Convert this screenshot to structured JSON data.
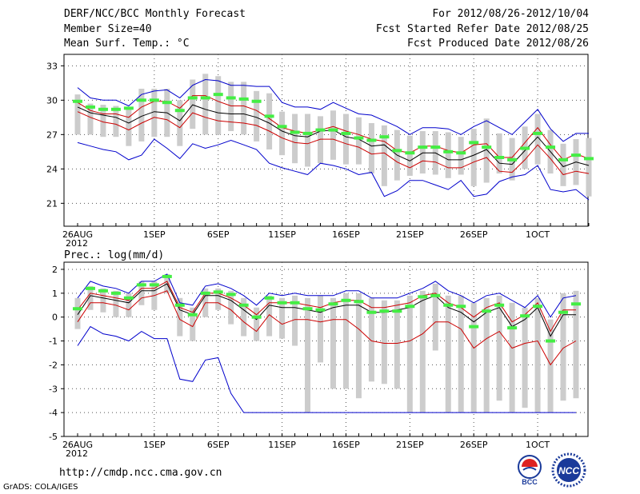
{
  "header": {
    "title": "DERF/NCC/BCC Monthly Forecast",
    "member": "Member Size=40",
    "variable": "Mean Surf. Temp.: °C",
    "period": "For 2012/08/26-2012/10/04",
    "started": "Fcst Started Refer Date 2012/08/25",
    "produced": "Fcst Produced Date 2012/08/26"
  },
  "url": "http://cmdp.ncc.cma.gov.cn",
  "credit": "GrADS: COLA/IGES",
  "logos": {
    "bcc": "BCC",
    "ncc": "NCC"
  },
  "colors": {
    "max": "#0000cc",
    "min": "#0000cc",
    "mean": "#000000",
    "band": "#cc0000",
    "obs": "#44ee44",
    "spread": "#cccccc"
  },
  "chart_data": [
    {
      "type": "line",
      "title": "Mean Surf. Temp.: °C",
      "xlabel_year": "2012",
      "ylim": [
        19,
        34
      ],
      "yticks": [
        21,
        24,
        27,
        30,
        33
      ],
      "ytick_labels": [
        "21",
        "24",
        "27",
        "30",
        "33"
      ],
      "xtick_labels": [
        {
          "day": 0,
          "label": "26AUG"
        },
        {
          "day": 6,
          "label": "1SEP"
        },
        {
          "day": 11,
          "label": "6SEP"
        },
        {
          "day": 16,
          "label": "11SEP"
        },
        {
          "day": 21,
          "label": "16SEP"
        },
        {
          "day": 26,
          "label": "21SEP"
        },
        {
          "day": 31,
          "label": "26SEP"
        },
        {
          "day": 36,
          "label": "1OCT"
        }
      ],
      "series": [
        {
          "name": "max",
          "values": [
            31.1,
            30.2,
            30.0,
            30.0,
            29.5,
            30.5,
            30.8,
            30.9,
            30.2,
            31.3,
            31.8,
            31.7,
            31.3,
            31.3,
            31.2,
            31.2,
            29.8,
            29.4,
            29.4,
            29.2,
            29.8,
            29.3,
            28.8,
            28.7,
            28.2,
            27.7,
            27.0,
            27.6,
            27.6,
            27.5,
            27.0,
            27.7,
            28.2,
            27.6,
            27.0,
            28.1,
            29.2,
            27.5,
            26.4,
            27.1,
            27.1
          ]
        },
        {
          "name": "upper",
          "values": [
            29.8,
            29.1,
            28.8,
            28.8,
            28.5,
            29.4,
            29.9,
            29.9,
            29.3,
            30.4,
            30.4,
            29.9,
            29.5,
            29.5,
            29.1,
            28.4,
            27.6,
            27.3,
            27.1,
            27.4,
            27.7,
            27.3,
            27.0,
            26.6,
            26.4,
            25.6,
            25.4,
            26.0,
            26.0,
            25.6,
            25.4,
            26.1,
            26.2,
            25.0,
            25.0,
            26.3,
            27.6,
            26.1,
            24.8,
            25.3,
            24.9
          ]
        },
        {
          "name": "mean",
          "values": [
            29.4,
            28.9,
            28.7,
            28.5,
            28.0,
            28.6,
            29.0,
            28.9,
            28.2,
            29.6,
            29.2,
            28.9,
            28.8,
            28.8,
            28.5,
            28.0,
            27.3,
            26.9,
            26.8,
            27.3,
            27.4,
            26.8,
            26.6,
            26.0,
            26.1,
            25.2,
            24.7,
            25.4,
            25.4,
            24.8,
            24.8,
            25.2,
            25.7,
            24.5,
            24.4,
            25.6,
            26.8,
            25.5,
            24.2,
            24.6,
            24.3
          ]
        },
        {
          "name": "lower",
          "values": [
            29.0,
            28.5,
            28.1,
            27.9,
            27.4,
            28.0,
            28.5,
            28.3,
            27.6,
            28.9,
            28.5,
            28.2,
            28.1,
            28.0,
            27.8,
            27.3,
            26.7,
            26.3,
            26.2,
            26.6,
            26.6,
            26.2,
            25.9,
            25.3,
            25.4,
            24.6,
            24.1,
            24.7,
            24.6,
            24.1,
            24.1,
            24.6,
            25.0,
            23.8,
            23.7,
            24.8,
            26.1,
            24.9,
            23.5,
            23.8,
            23.6
          ]
        },
        {
          "name": "min",
          "values": [
            26.3,
            26.0,
            25.7,
            25.5,
            24.8,
            25.2,
            26.6,
            25.8,
            24.9,
            26.2,
            25.8,
            26.1,
            26.5,
            26.1,
            25.7,
            24.5,
            24.1,
            23.8,
            23.5,
            24.5,
            24.3,
            24.0,
            23.5,
            23.7,
            21.6,
            22.1,
            23.0,
            23.0,
            22.6,
            22.2,
            23.0,
            21.6,
            21.8,
            22.9,
            23.3,
            23.5,
            24.3,
            22.2,
            22.0,
            22.2,
            21.3
          ]
        },
        {
          "name": "observed",
          "values": [
            29.9,
            29.4,
            29.2,
            29.2,
            29.3,
            30.0,
            30.0,
            29.8,
            29.1,
            30.2,
            30.2,
            30.5,
            30.2,
            30.1,
            29.9,
            28.6,
            27.7,
            27.2,
            27.1,
            27.4,
            27.4,
            27.1,
            26.7,
            26.5,
            26.8,
            25.6,
            25.4,
            25.9,
            25.9,
            25.5,
            25.4,
            26.3,
            25.9,
            25.0,
            24.8,
            25.8,
            27.1,
            25.9,
            24.8,
            25.2,
            24.9
          ]
        }
      ],
      "spread": {
        "low": [
          27.0,
          27.0,
          26.8,
          26.8,
          26.0,
          26.4,
          26.8,
          26.8,
          26.0,
          27.5,
          27.0,
          27.0,
          27.3,
          27.0,
          26.4,
          25.7,
          25.2,
          24.5,
          24.2,
          24.5,
          24.8,
          24.4,
          24.4,
          23.6,
          22.5,
          23.0,
          23.4,
          23.6,
          23.5,
          23.2,
          23.5,
          22.5,
          22.8,
          23.6,
          23.0,
          24.0,
          24.4,
          23.6,
          22.5,
          22.6,
          21.6
        ],
        "high": [
          30.5,
          29.7,
          29.6,
          29.5,
          29.3,
          31.0,
          31.0,
          31.0,
          30.0,
          31.8,
          32.3,
          32.1,
          31.6,
          31.6,
          30.8,
          30.6,
          29.0,
          28.8,
          28.8,
          28.6,
          29.1,
          28.8,
          28.5,
          28.0,
          27.8,
          27.4,
          26.9,
          27.3,
          27.3,
          27.2,
          26.8,
          27.5,
          28.4,
          27.1,
          26.7,
          27.7,
          28.8,
          27.4,
          26.2,
          26.6,
          26.7
        ]
      }
    },
    {
      "type": "line",
      "title": "Prec.: log(mm/d)",
      "xlabel_year": "2012",
      "ylim": [
        -5,
        2.3
      ],
      "yticks": [
        -5,
        -4,
        -3,
        -2,
        -1,
        0,
        1,
        2
      ],
      "ytick_labels": [
        "-5",
        "-4",
        "-3",
        "-2",
        "-1",
        "0",
        "1",
        "2"
      ],
      "xtick_labels": [
        {
          "day": 0,
          "label": "26AUG"
        },
        {
          "day": 6,
          "label": "1SEP"
        },
        {
          "day": 11,
          "label": "6SEP"
        },
        {
          "day": 16,
          "label": "11SEP"
        },
        {
          "day": 21,
          "label": "16SEP"
        },
        {
          "day": 26,
          "label": "21SEP"
        },
        {
          "day": 31,
          "label": "26SEP"
        },
        {
          "day": 36,
          "label": "1OCT"
        }
      ],
      "series": [
        {
          "name": "max",
          "values": [
            0.8,
            1.5,
            1.3,
            1.2,
            1.0,
            1.5,
            1.5,
            1.8,
            0.6,
            0.5,
            1.3,
            1.4,
            1.2,
            0.9,
            0.5,
            1.0,
            0.9,
            1.0,
            0.9,
            0.9,
            0.9,
            1.1,
            1.1,
            0.8,
            0.8,
            0.8,
            1.0,
            1.2,
            1.5,
            1.1,
            0.9,
            0.6,
            0.9,
            1.0,
            0.7,
            0.4,
            0.9,
            0.0,
            0.8,
            0.9
          ]
        },
        {
          "name": "upper",
          "values": [
            0.3,
            1.0,
            0.9,
            0.8,
            0.7,
            1.2,
            1.2,
            1.5,
            0.4,
            0.2,
            1.0,
            1.0,
            0.8,
            0.5,
            0.1,
            0.6,
            0.6,
            0.6,
            0.5,
            0.4,
            0.6,
            0.7,
            0.7,
            0.4,
            0.4,
            0.5,
            0.6,
            0.9,
            1.0,
            0.6,
            0.4,
            0.0,
            0.4,
            0.6,
            -0.2,
            0.1,
            0.6,
            -0.6,
            0.3,
            0.3
          ]
        },
        {
          "name": "mean",
          "values": [
            0.1,
            0.9,
            0.8,
            0.7,
            0.6,
            1.1,
            1.1,
            1.4,
            0.3,
            0.1,
            0.9,
            0.9,
            0.7,
            0.3,
            -0.1,
            0.5,
            0.4,
            0.4,
            0.3,
            0.2,
            0.4,
            0.5,
            0.5,
            0.2,
            0.2,
            0.3,
            0.4,
            0.7,
            0.9,
            0.4,
            0.2,
            -0.2,
            0.2,
            0.4,
            -0.4,
            -0.1,
            0.4,
            -0.8,
            0.1,
            0.1
          ]
        },
        {
          "name": "lower",
          "values": [
            -0.2,
            0.6,
            0.6,
            0.5,
            0.3,
            0.8,
            0.9,
            1.1,
            -0.1,
            -0.4,
            0.6,
            0.6,
            0.3,
            -0.2,
            -0.6,
            0.1,
            -0.3,
            -0.1,
            -0.1,
            -0.2,
            -0.1,
            -0.1,
            -0.5,
            -1.0,
            -1.1,
            -1.1,
            -1.0,
            -0.7,
            -0.2,
            -0.2,
            -0.5,
            -1.3,
            -0.9,
            -0.6,
            -1.3,
            -1.1,
            -1.0,
            -2.0,
            -1.3,
            -1.0
          ]
        },
        {
          "name": "min",
          "values": [
            -1.2,
            -0.4,
            -0.7,
            -0.8,
            -1.0,
            -0.6,
            -0.9,
            -0.9,
            -2.6,
            -2.7,
            -1.8,
            -1.7,
            -3.2,
            -4.0,
            -4.0,
            -4.0,
            -4.0,
            -4.0,
            -4.0,
            -4.0,
            -4.0,
            -4.0,
            -4.0,
            -4.0,
            -4.0,
            -4.0,
            -4.0,
            -4.0,
            -4.0,
            -4.0,
            -4.0,
            -4.0,
            -4.0,
            -4.0,
            -4.0,
            -4.0,
            -4.0,
            -4.0,
            -4.0,
            -4.0
          ]
        },
        {
          "name": "observed",
          "values": [
            0.35,
            1.2,
            1.1,
            1.0,
            0.8,
            1.35,
            1.35,
            1.7,
            0.5,
            0.1,
            1.0,
            1.05,
            0.95,
            0.5,
            0.0,
            0.8,
            0.6,
            0.6,
            0.35,
            0.3,
            0.55,
            0.7,
            0.65,
            0.2,
            0.25,
            0.25,
            0.45,
            0.85,
            0.9,
            0.5,
            0.45,
            -0.4,
            0.25,
            0.5,
            -0.45,
            0.05,
            0.45,
            -1.0,
            0.2,
            0.55
          ]
        }
      ],
      "spread": {
        "low": [
          -0.5,
          0.3,
          0.2,
          0.0,
          0.0,
          0.5,
          0.3,
          1.0,
          -0.8,
          -1.0,
          0.0,
          0.3,
          -0.3,
          -0.8,
          -1.0,
          -0.8,
          -0.9,
          -1.2,
          -4.0,
          -1.9,
          -3.0,
          -3.0,
          -3.4,
          -2.7,
          -2.8,
          -3.0,
          -4.0,
          -4.0,
          -1.4,
          -4.0,
          -4.0,
          -4.0,
          -4.0,
          -3.5,
          -4.0,
          -3.8,
          -4.0,
          -4.0,
          -3.5,
          -3.4
        ],
        "high": [
          0.8,
          1.3,
          1.2,
          1.1,
          1.0,
          1.5,
          1.5,
          1.8,
          0.8,
          0.4,
          1.2,
          1.2,
          1.1,
          0.8,
          0.4,
          0.9,
          0.8,
          0.9,
          0.8,
          0.9,
          0.8,
          1.0,
          1.0,
          0.8,
          0.7,
          0.7,
          0.9,
          1.1,
          1.4,
          0.9,
          0.9,
          0.6,
          0.8,
          0.9,
          0.6,
          0.4,
          0.8,
          -0.1,
          1.0,
          1.1
        ]
      }
    }
  ]
}
